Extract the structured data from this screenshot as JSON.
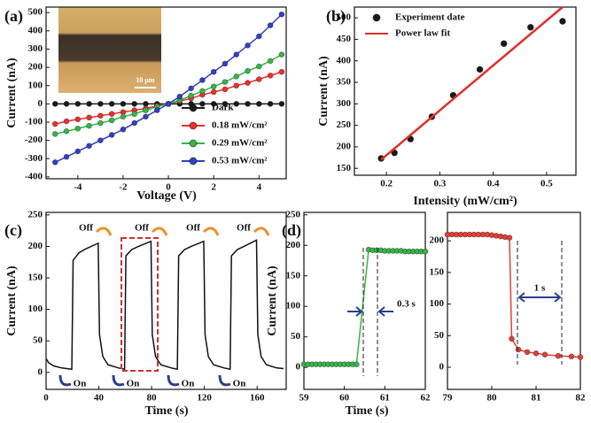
{
  "chart_data": [
    {
      "type": "line",
      "panel_label": "(a)",
      "xlabel": "Voltage (V)",
      "ylabel": "Current (nA)",
      "xlim": [
        -5.4,
        5.2
      ],
      "xticks": [
        -4,
        -2,
        0,
        2,
        4
      ],
      "ylim": [
        -410,
        530
      ],
      "yticks": [
        -400,
        -300,
        -200,
        -100,
        0,
        100,
        200,
        300,
        400,
        500
      ],
      "markers": true,
      "legend": "lower right",
      "annotations": [
        "10 μm"
      ],
      "x": [
        -5,
        -4.5,
        -4,
        -3.5,
        -3,
        -2.5,
        -2,
        -1.5,
        -1,
        -0.5,
        0,
        0.5,
        1,
        1.5,
        2,
        2.5,
        3,
        3.5,
        4,
        4.5,
        5
      ],
      "series": [
        {
          "name": "Dark",
          "color": "#1a1a1a",
          "values": [
            0,
            0,
            0,
            0,
            0,
            0,
            0,
            0,
            0,
            0,
            0,
            0,
            0,
            0,
            0,
            0,
            0,
            0,
            0,
            0,
            0
          ]
        },
        {
          "name": "0.18 mW/cm²",
          "color": "#e8312b",
          "values": [
            -110,
            -95,
            -85,
            -75,
            -65,
            -55,
            -45,
            -35,
            -25,
            -10,
            0,
            15,
            30,
            50,
            65,
            80,
            100,
            115,
            135,
            155,
            175
          ]
        },
        {
          "name": "0.29 mW/cm²",
          "color": "#37b34a",
          "values": [
            -165,
            -150,
            -135,
            -120,
            -105,
            -90,
            -70,
            -55,
            -35,
            -15,
            0,
            20,
            45,
            70,
            95,
            120,
            150,
            180,
            205,
            235,
            270
          ]
        },
        {
          "name": "0.53 mW/cm²",
          "color": "#3340c0",
          "values": [
            -320,
            -290,
            -260,
            -230,
            -200,
            -170,
            -140,
            -105,
            -70,
            -35,
            0,
            40,
            85,
            130,
            175,
            220,
            270,
            320,
            370,
            430,
            490
          ]
        }
      ]
    },
    {
      "type": "scatter",
      "panel_label": "(b)",
      "xlabel": "Intensity (mW/cm²)",
      "ylabel": "Current (nA)",
      "xlim": [
        0.14,
        0.555
      ],
      "xticks": [
        0.2,
        0.3,
        0.4,
        0.5
      ],
      "ylim": [
        134,
        525
      ],
      "yticks": [
        150,
        200,
        250,
        300,
        350,
        400,
        450,
        500
      ],
      "legend": "upper left",
      "series": [
        {
          "name": "Experiment date",
          "style": "markers",
          "color": "#1a1a1a",
          "x": [
            0.19,
            0.215,
            0.245,
            0.285,
            0.325,
            0.375,
            0.42,
            0.47,
            0.53
          ],
          "values": [
            173,
            186,
            218,
            270,
            320,
            380,
            440,
            478,
            492
          ]
        },
        {
          "name": "Power law fit",
          "style": "line",
          "color": "#e0302a",
          "x": [
            0.19,
            0.53
          ],
          "values": [
            170,
            525
          ]
        }
      ]
    },
    {
      "type": "line",
      "panel_label": "(c)",
      "xlabel": "Time (s)",
      "ylabel": "Current (nA)",
      "xlim": [
        0,
        182
      ],
      "xticks": [
        0,
        40,
        80,
        120,
        160
      ],
      "ylim": [
        -27,
        254
      ],
      "yticks": [
        0,
        50,
        100,
        150,
        200,
        250
      ],
      "markers": false,
      "annotations": [
        "Off",
        "Off",
        "Off",
        "Off",
        "On",
        "On",
        "On",
        "On"
      ],
      "x": [
        0,
        2,
        6,
        12,
        19.5,
        20.5,
        25,
        30,
        39.5,
        40.5,
        43,
        47,
        55,
        59.5,
        60.5,
        65,
        70,
        79.5,
        80.5,
        83,
        87,
        95,
        99.5,
        100.5,
        105,
        110,
        119.5,
        120.5,
        123,
        127,
        135,
        139.5,
        140.5,
        145,
        150,
        159.5,
        160.5,
        163,
        167,
        175,
        180
      ],
      "series": [
        {
          "color": "#111111",
          "values": [
            22,
            15,
            10,
            7,
            5,
            178,
            190,
            196,
            205,
            60,
            25,
            12,
            7,
            5,
            185,
            195,
            200,
            208,
            60,
            25,
            12,
            7,
            5,
            185,
            195,
            200,
            208,
            60,
            25,
            12,
            7,
            5,
            185,
            195,
            200,
            210,
            60,
            25,
            12,
            7,
            6
          ]
        }
      ]
    },
    {
      "type": "line",
      "panel_label": "(d)",
      "xlabel": "Time (s)",
      "ylabel": "Current (nA)",
      "xlim": [
        59,
        62
      ],
      "xticks": [
        59,
        60,
        61,
        62
      ],
      "ylim": [
        -36,
        254
      ],
      "yticks": [
        0,
        50,
        100,
        150,
        200,
        250
      ],
      "markers": true,
      "annotations": [
        "0.3 s"
      ],
      "x": [
        59,
        59.1,
        59.2,
        59.3,
        59.4,
        59.5,
        59.6,
        59.7,
        59.8,
        59.9,
        60,
        60.1,
        60.2,
        60.3,
        60.6,
        60.7,
        60.8,
        60.9,
        61,
        61.1,
        61.2,
        61.3,
        61.4,
        61.5,
        61.6,
        61.7,
        61.8,
        61.9,
        62
      ],
      "series": [
        {
          "color": "#37b34a",
          "values": [
            5,
            5,
            5,
            5,
            5,
            5,
            5,
            5,
            5,
            5,
            5,
            5,
            5,
            5,
            193,
            192,
            192,
            192,
            191,
            191,
            191,
            191,
            191,
            190,
            190,
            190,
            190,
            190,
            190
          ]
        }
      ]
    },
    {
      "type": "line",
      "xlim": [
        79,
        82
      ],
      "xticks": [
        79,
        80,
        81,
        82
      ],
      "ylim": [
        -35,
        245
      ],
      "yticks": [
        0,
        50,
        100,
        150,
        200
      ],
      "markers": true,
      "annotations": [
        "1 s"
      ],
      "x": [
        79,
        79.1,
        79.2,
        79.3,
        79.4,
        79.5,
        79.6,
        79.7,
        79.8,
        79.9,
        80,
        80.1,
        80.2,
        80.3,
        80.4,
        80.45,
        80.6,
        80.8,
        81,
        81.2,
        81.5,
        81.8,
        82
      ],
      "series": [
        {
          "color": "#e0403a",
          "values": [
            210,
            210,
            210,
            210,
            210,
            210,
            210,
            210,
            210,
            210,
            209,
            208,
            207,
            206,
            205,
            45,
            28,
            24,
            22,
            20,
            18,
            17,
            16
          ]
        }
      ]
    }
  ]
}
